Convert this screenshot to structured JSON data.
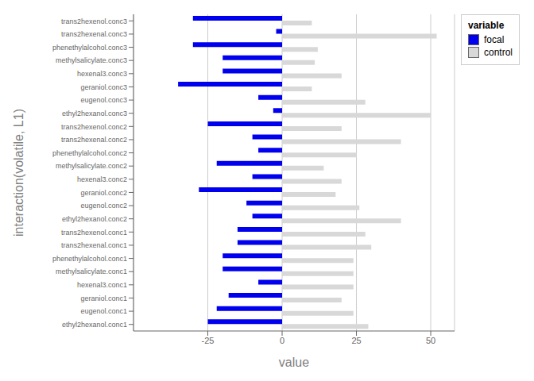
{
  "chart_data": {
    "type": "bar",
    "orientation": "horizontal",
    "xlabel": "value",
    "ylabel": "interaction(volatile, L1)",
    "legend_title": "variable",
    "legend": "upper right",
    "grid": true,
    "categories": [
      "trans2hexenol.conc3",
      "trans2hexenal.conc3",
      "phenethylalcohol.conc3",
      "methylsalicylate.conc3",
      "hexenal3.conc3",
      "geraniol.conc3",
      "eugenol.conc3",
      "ethyl2hexanol.conc3",
      "trans2hexenol.conc2",
      "trans2hexenal.conc2",
      "phenethylalcohol.conc2",
      "methylsalicylate.conc2",
      "hexenal3.conc2",
      "geraniol.conc2",
      "eugenol.conc2",
      "ethyl2hexanol.conc2",
      "trans2hexenol.conc1",
      "trans2hexenal.conc1",
      "phenethylalcohol.conc1",
      "methylsalicylate.conc1",
      "hexenal3.conc1",
      "geraniol.conc1",
      "eugenol.conc1",
      "ethyl2hexanol.conc1"
    ],
    "series": [
      {
        "name": "focal",
        "color": "#0000EE",
        "values": [
          -30,
          -2,
          -30,
          -20,
          -20,
          -35,
          -8,
          -3,
          -25,
          -10,
          -8,
          -22,
          -10,
          -28,
          -12,
          -10,
          -15,
          -15,
          -20,
          -20,
          -8,
          -18,
          -22,
          -25
        ]
      },
      {
        "name": "control",
        "color": "#D8D8D8",
        "values": [
          10,
          52,
          12,
          11,
          20,
          10,
          28,
          50,
          20,
          40,
          25,
          14,
          20,
          18,
          26,
          40,
          28,
          30,
          24,
          24,
          24,
          20,
          24,
          29
        ]
      }
    ],
    "xlim": [
      -50,
      58
    ],
    "xticks": [
      -25,
      0,
      25,
      50
    ]
  }
}
